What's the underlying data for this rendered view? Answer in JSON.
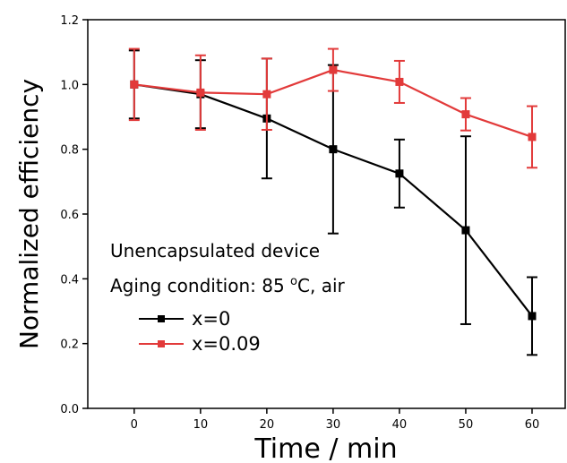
{
  "chart_data": {
    "type": "line",
    "xlabel": "Time / min",
    "ylabel": "Normalized efficiency",
    "xlim": [
      -7,
      65
    ],
    "ylim": [
      0,
      1.2
    ],
    "x_ticks": [
      0,
      10,
      20,
      30,
      40,
      50,
      60
    ],
    "y_ticks": [
      0.0,
      0.2,
      0.4,
      0.6,
      0.8,
      1.0,
      1.2
    ],
    "y_tick_labels": [
      "0.0",
      "0.2",
      "0.4",
      "0.6",
      "0.8",
      "1.0",
      "1.2"
    ],
    "grid": false,
    "legend_position": "bottom-left",
    "annotations": {
      "line1": "Unencapsulated device",
      "line2_prefix": "Aging condition: 85 ",
      "line2_sup": "o",
      "line2_suffix": "C, air"
    },
    "series": [
      {
        "name": "x=0",
        "color": "#000000",
        "x": [
          0,
          10,
          20,
          30,
          40,
          50,
          60
        ],
        "y": [
          1.0,
          0.97,
          0.895,
          0.8,
          0.725,
          0.55,
          0.285
        ],
        "error": [
          0.105,
          0.105,
          0.185,
          0.26,
          0.105,
          0.29,
          0.12
        ]
      },
      {
        "name": "x=0.09",
        "color": "#e23a3a",
        "x": [
          0,
          10,
          20,
          30,
          40,
          50,
          60
        ],
        "y": [
          1.0,
          0.975,
          0.97,
          1.045,
          1.008,
          0.908,
          0.838
        ],
        "error": [
          0.11,
          0.115,
          0.11,
          0.065,
          0.065,
          0.05,
          0.095
        ]
      }
    ]
  }
}
